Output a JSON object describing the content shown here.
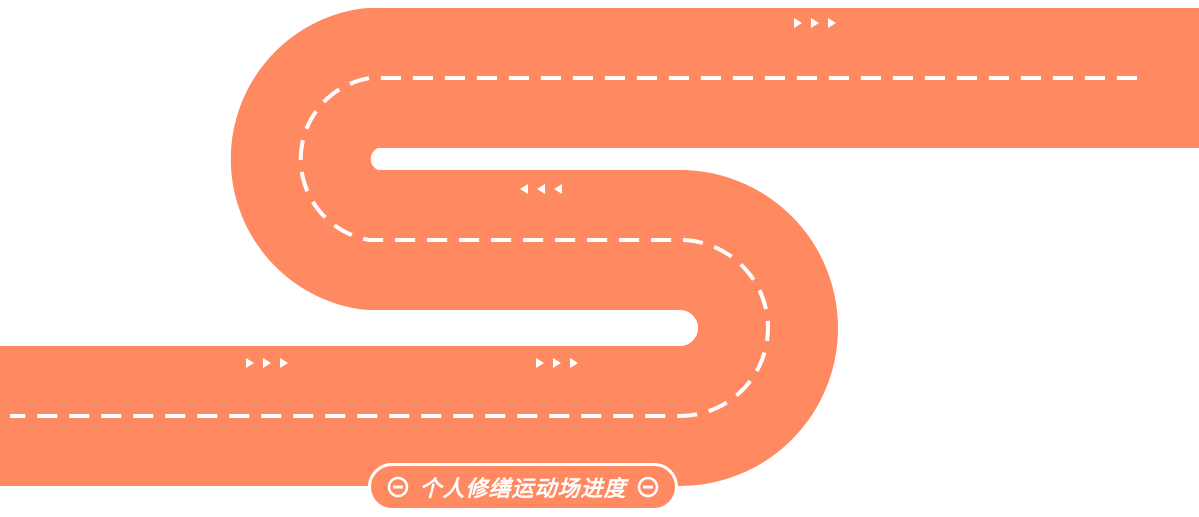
{
  "colors": {
    "road": "#FF8A62",
    "lane_line": "#ffffff",
    "background": "#ffffff",
    "arrow": "#ffffff"
  },
  "direction_markers": [
    {
      "direction": "right",
      "glyph": "▶▶▶"
    },
    {
      "direction": "left",
      "glyph": "◀◀◀"
    },
    {
      "direction": "right",
      "glyph": "▶▶▶"
    },
    {
      "direction": "right",
      "glyph": "▶▶▶"
    }
  ],
  "title_badge": {
    "text": "个人修缮运动场进度",
    "left_icon": "minus-circle-icon",
    "right_icon": "minus-circle-icon"
  }
}
